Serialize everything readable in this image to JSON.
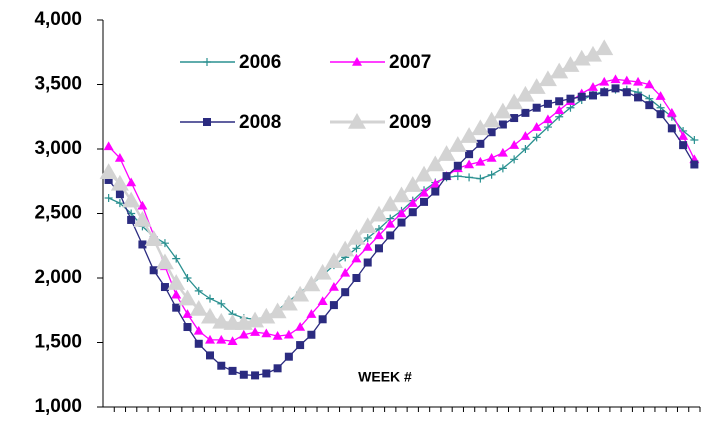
{
  "chart_data": {
    "type": "line",
    "x_label": "WEEK #",
    "categories": [
      null,
      null,
      null,
      null,
      null,
      null,
      null,
      null,
      null,
      null,
      null,
      null,
      null,
      null,
      null,
      null,
      null,
      null,
      null,
      null,
      null,
      null,
      null,
      null,
      null,
      null,
      null,
      null,
      null,
      null,
      null,
      null,
      null,
      null,
      null,
      null,
      null,
      null,
      null,
      null,
      null,
      null,
      null,
      null,
      null,
      null,
      null,
      null,
      null,
      null,
      null,
      null,
      null
    ],
    "ylim": [
      1000,
      4000
    ],
    "yticks": [
      {
        "value": 1000,
        "label": "1,000"
      },
      {
        "value": 1500,
        "label": "1,500"
      },
      {
        "value": 2000,
        "label": "2,000"
      },
      {
        "value": 2500,
        "label": "2,500"
      },
      {
        "value": 3000,
        "label": "3,000"
      },
      {
        "value": 3500,
        "label": "3,500"
      },
      {
        "value": 4000,
        "label": "4,000"
      }
    ],
    "series": [
      {
        "name": "2006",
        "color": "#2a9090",
        "marker": "plus",
        "values": [
          2620,
          2580,
          2500,
          2400,
          2320,
          2270,
          2150,
          2000,
          1900,
          1840,
          1800,
          1720,
          1690,
          1680,
          1700,
          1750,
          1820,
          1890,
          1950,
          2020,
          2100,
          2160,
          2230,
          2310,
          2380,
          2460,
          2520,
          2600,
          2680,
          2740,
          2780,
          2790,
          2780,
          2770,
          2800,
          2850,
          2920,
          3000,
          3090,
          3170,
          3250,
          3320,
          3380,
          3420,
          3450,
          3460,
          3460,
          3440,
          3390,
          3320,
          3250,
          3140,
          3070
        ]
      },
      {
        "name": "2007",
        "color": "#ff00ff",
        "marker": "triangle",
        "values": [
          3020,
          2930,
          2740,
          2560,
          2330,
          2090,
          1870,
          1720,
          1590,
          1520,
          1520,
          1510,
          1560,
          1580,
          1570,
          1550,
          1560,
          1620,
          1720,
          1820,
          1930,
          2040,
          2150,
          2240,
          2330,
          2420,
          2500,
          2580,
          2660,
          2730,
          2790,
          2850,
          2880,
          2900,
          2930,
          2970,
          3030,
          3100,
          3170,
          3230,
          3300,
          3370,
          3430,
          3480,
          3520,
          3540,
          3530,
          3520,
          3500,
          3410,
          3280,
          3100,
          2920
        ]
      },
      {
        "name": "2008",
        "color": "#2b2b80",
        "marker": "square",
        "values": [
          2760,
          2650,
          2450,
          2260,
          2060,
          1930,
          1770,
          1620,
          1490,
          1400,
          1320,
          1280,
          1250,
          1245,
          1260,
          1300,
          1390,
          1480,
          1560,
          1680,
          1790,
          1890,
          2000,
          2120,
          2230,
          2330,
          2430,
          2510,
          2590,
          2670,
          2790,
          2870,
          2960,
          3040,
          3130,
          3190,
          3240,
          3280,
          3320,
          3350,
          3370,
          3390,
          3405,
          3415,
          3440,
          3470,
          3440,
          3400,
          3340,
          3270,
          3160,
          3030,
          2880
        ]
      },
      {
        "name": "2009",
        "color": "#d3d3d3",
        "marker": "big-triangle",
        "values": [
          2820,
          2730,
          2600,
          2450,
          2300,
          2120,
          1960,
          1840,
          1760,
          1700,
          1660,
          1650,
          1650,
          1670,
          1700,
          1740,
          1800,
          1870,
          1950,
          2040,
          2130,
          2220,
          2310,
          2400,
          2490,
          2570,
          2640,
          2720,
          2800,
          2880,
          2960,
          3030,
          3100,
          3160,
          3220,
          3290,
          3360,
          3420,
          3480,
          3540,
          3600,
          3650,
          3700,
          3730,
          3780,
          null,
          null,
          null,
          null,
          null,
          null,
          null,
          null
        ]
      }
    ]
  }
}
